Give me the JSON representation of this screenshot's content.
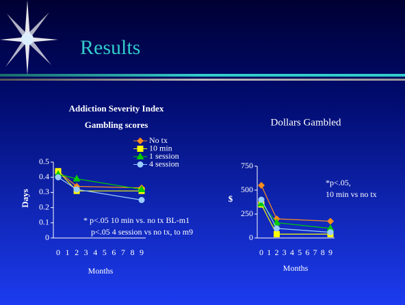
{
  "slide_title": "Results",
  "chart_data": [
    {
      "type": "line",
      "title": [
        "Addiction Severity Index",
        "Gambling scores"
      ],
      "x_label": "Months",
      "y_label": "Days",
      "x": [
        0,
        2,
        9
      ],
      "xlim": [
        0,
        9
      ],
      "xticks": [
        0,
        1,
        2,
        3,
        4,
        5,
        6,
        7,
        8,
        9
      ],
      "ylim": [
        0,
        0.5
      ],
      "yticks": [
        0,
        0.1,
        0.2,
        0.3,
        0.4,
        0.5
      ],
      "legend": "top-right",
      "series": [
        {
          "name": "No tx",
          "color": "#ff8c1a",
          "marker": "diamond",
          "values": [
            0.44,
            0.34,
            0.33
          ]
        },
        {
          "name": "10 min",
          "color": "#ffff00",
          "marker": "square",
          "values": [
            0.44,
            0.31,
            0.31
          ]
        },
        {
          "name": "1 session",
          "color": "#00cc00",
          "marker": "triangle",
          "values": [
            0.42,
            0.39,
            0.32
          ]
        },
        {
          "name": "4 session",
          "color": "#99ccff",
          "marker": "circle",
          "values": [
            0.4,
            0.32,
            0.25
          ]
        }
      ],
      "annotations": [
        "* p<.05 10 min vs. no tx BL-m1",
        "p<.05 4 session vs no tx, to m9"
      ]
    },
    {
      "type": "line",
      "title": [
        "Dollars Gambled"
      ],
      "x_label": "Months",
      "y_label": "$",
      "x": [
        0,
        2,
        9
      ],
      "xlim": [
        0,
        9
      ],
      "xticks": [
        0,
        1,
        2,
        3,
        4,
        5,
        6,
        7,
        8,
        9
      ],
      "ylim": [
        0,
        750
      ],
      "yticks": [
        0,
        250,
        500,
        750
      ],
      "series": [
        {
          "name": "No tx",
          "color": "#ff8c1a",
          "marker": "diamond",
          "values": [
            550,
            200,
            175
          ]
        },
        {
          "name": "10 min",
          "color": "#ffff00",
          "marker": "square",
          "values": [
            350,
            40,
            40
          ]
        },
        {
          "name": "1 session",
          "color": "#00cc00",
          "marker": "triangle",
          "values": [
            360,
            160,
            100
          ]
        },
        {
          "name": "4 session",
          "color": "#99ccff",
          "marker": "circle",
          "values": [
            400,
            100,
            60
          ]
        }
      ],
      "annotations": [
        "*p<.05,",
        "10 min vs no tx"
      ]
    }
  ]
}
